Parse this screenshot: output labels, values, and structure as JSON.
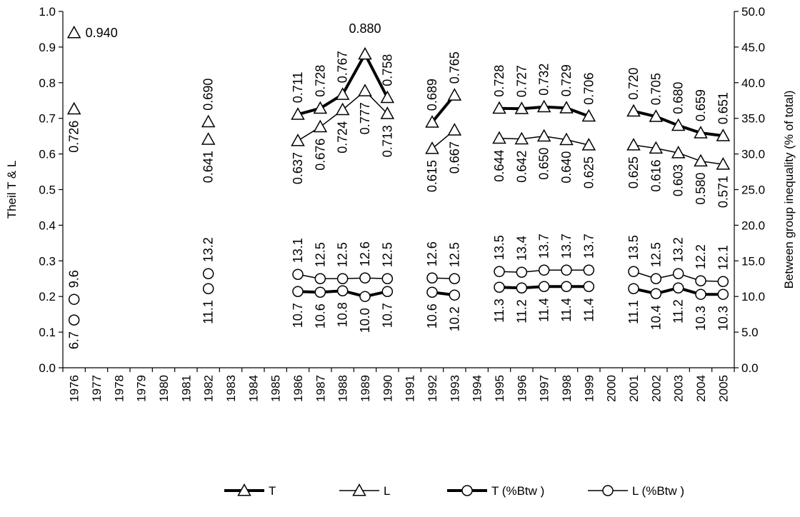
{
  "chart_data": {
    "type": "line",
    "title": "",
    "xlabel": "",
    "ylabel": "Theil T & L",
    "y2label": "Between group inequality (% of total)",
    "ylim": [
      0,
      1.0
    ],
    "y2lim": [
      0,
      50
    ],
    "yticks": [
      "0.0",
      "0.1",
      "0.2",
      "0.3",
      "0.4",
      "0.5",
      "0.6",
      "0.7",
      "0.8",
      "0.9",
      "1.0"
    ],
    "y2ticks": [
      "0.0",
      "5.0",
      "10.0",
      "15.0",
      "20.0",
      "25.0",
      "30.0",
      "35.0",
      "40.0",
      "45.0",
      "50.0"
    ],
    "categories": [
      "1976",
      "1977",
      "1978",
      "1979",
      "1980",
      "1981",
      "1982",
      "1983",
      "1984",
      "1985",
      "1986",
      "1987",
      "1988",
      "1989",
      "1990",
      "1991",
      "1992",
      "1993",
      "1994",
      "1995",
      "1996",
      "1997",
      "1998",
      "1999",
      "2000",
      "2001",
      "2002",
      "2003",
      "2004",
      "2005"
    ],
    "series": [
      {
        "name": "T",
        "axis": "left",
        "marker": "triangle",
        "line": "thick",
        "values": [
          0.94,
          null,
          null,
          null,
          null,
          null,
          0.69,
          null,
          null,
          null,
          0.711,
          0.728,
          0.767,
          0.88,
          0.758,
          null,
          0.689,
          0.765,
          null,
          0.728,
          0.727,
          0.732,
          0.729,
          0.706,
          null,
          0.72,
          0.705,
          0.68,
          0.659,
          0.651
        ],
        "labels": [
          "0.940",
          null,
          null,
          null,
          null,
          null,
          "0.690",
          null,
          null,
          null,
          "0.711",
          "0.728",
          "0.767",
          "0.880",
          "0.758",
          null,
          "0.689",
          "0.765",
          null,
          "0.728",
          "0.727",
          "0.732",
          "0.729",
          "0.706",
          null,
          "0.720",
          "0.705",
          "0.680",
          "0.659",
          "0.651"
        ]
      },
      {
        "name": "L",
        "axis": "left",
        "marker": "triangle",
        "line": "thin",
        "values": [
          0.726,
          null,
          null,
          null,
          null,
          null,
          0.641,
          null,
          null,
          null,
          0.637,
          0.676,
          0.724,
          0.777,
          0.713,
          null,
          0.615,
          0.667,
          null,
          0.644,
          0.642,
          0.65,
          0.64,
          0.625,
          null,
          0.625,
          0.616,
          0.603,
          0.58,
          0.571
        ],
        "labels": [
          "0.726",
          null,
          null,
          null,
          null,
          null,
          "0.641",
          null,
          null,
          null,
          "0.637",
          "0.676",
          "0.724",
          "0.777",
          "0.713",
          null,
          "0.615",
          "0.667",
          null,
          "0.644",
          "0.642",
          "0.650",
          "0.640",
          "0.625",
          null,
          "0.625",
          "0.616",
          "0.603",
          "0.580",
          "0.571"
        ]
      },
      {
        "name": "T (%Btw )",
        "axis": "right",
        "marker": "circle",
        "line": "thick",
        "values": [
          6.7,
          null,
          null,
          null,
          null,
          null,
          11.1,
          null,
          null,
          null,
          10.7,
          10.6,
          10.8,
          10.0,
          10.7,
          null,
          10.6,
          10.2,
          null,
          11.3,
          11.2,
          11.4,
          11.4,
          11.4,
          null,
          11.1,
          10.4,
          11.2,
          10.3,
          10.3
        ],
        "labels": [
          "6.7",
          null,
          null,
          null,
          null,
          null,
          "11.1",
          null,
          null,
          null,
          "10.7",
          "10.6",
          "10.8",
          "10.0",
          "10.7",
          null,
          "10.6",
          "10.2",
          null,
          "11.3",
          "11.2",
          "11.4",
          "11.4",
          "11.4",
          null,
          "11.1",
          "10.4",
          "11.2",
          "10.3",
          "10.3"
        ]
      },
      {
        "name": "L (%Btw )",
        "axis": "right",
        "marker": "circle",
        "line": "thin",
        "values": [
          9.6,
          null,
          null,
          null,
          null,
          null,
          13.2,
          null,
          null,
          null,
          13.1,
          12.5,
          12.5,
          12.6,
          12.5,
          null,
          12.6,
          12.5,
          null,
          13.5,
          13.4,
          13.7,
          13.7,
          13.7,
          null,
          13.5,
          12.5,
          13.2,
          12.2,
          12.1
        ],
        "labels": [
          "9.6",
          null,
          null,
          null,
          null,
          null,
          "13.2",
          null,
          null,
          null,
          "13.1",
          "12.5",
          "12.5",
          "12.6",
          "12.5",
          null,
          "12.6",
          "12.5",
          null,
          "13.5",
          "13.4",
          "13.7",
          "13.7",
          "13.7",
          null,
          "13.5",
          "12.5",
          "13.2",
          "12.2",
          "12.1"
        ]
      }
    ],
    "legend": [
      "T",
      "L",
      "T (%Btw )",
      "L (%Btw )"
    ],
    "legend_position": "bottom",
    "grid": false
  }
}
